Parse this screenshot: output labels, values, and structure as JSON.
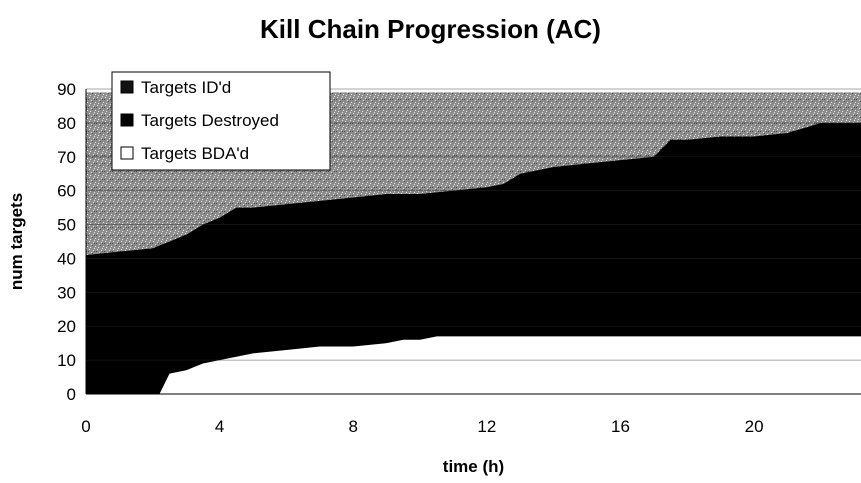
{
  "chart_data": {
    "type": "area",
    "title": "Kill Chain Progression (AC)",
    "xlabel": "time (h)",
    "ylabel": "num targets",
    "xlim": [
      0,
      23.2
    ],
    "ylim": [
      0,
      90
    ],
    "xticks": [
      0,
      4,
      8,
      12,
      16,
      20
    ],
    "yticks": [
      0,
      10,
      20,
      30,
      40,
      50,
      60,
      70,
      80,
      90
    ],
    "grid": true,
    "legend_position": "top-left",
    "series": [
      {
        "name": "Targets ID'd",
        "color": "#9a9a9a",
        "pattern": "speckled",
        "x": [
          0,
          1,
          2,
          2.5,
          3,
          3.5,
          4,
          4.5,
          5,
          6,
          7,
          8,
          9,
          10,
          11,
          12,
          12.5,
          13,
          14,
          15,
          16,
          17,
          17.5,
          18,
          19,
          20,
          21,
          22,
          23.2
        ],
        "values": [
          89,
          89,
          89,
          89,
          89,
          89,
          89,
          89,
          89,
          89,
          89,
          89,
          89,
          89,
          89,
          89,
          89,
          89,
          89,
          89,
          89,
          89,
          89,
          89,
          89,
          89,
          89,
          89,
          89
        ]
      },
      {
        "name": "Targets Destroyed",
        "color": "#000000",
        "x": [
          0,
          1,
          2,
          2.5,
          3,
          3.5,
          4,
          4.5,
          5,
          6,
          7,
          8,
          9,
          10,
          11,
          12,
          12.5,
          13,
          14,
          15,
          16,
          17,
          17.5,
          18,
          19,
          20,
          21,
          22,
          23.2
        ],
        "values": [
          41,
          42,
          43,
          45,
          47,
          50,
          52,
          55,
          55,
          56,
          57,
          58,
          59,
          59,
          60,
          61,
          62,
          65,
          67,
          68,
          69,
          70,
          75,
          75,
          76,
          76,
          77,
          80,
          80
        ]
      },
      {
        "name": "Targets BDA'd",
        "color": "#ffffff",
        "x": [
          0,
          2.2,
          2.5,
          3,
          3.5,
          4,
          4.5,
          5,
          6,
          7,
          8,
          9,
          9.5,
          10,
          10.5,
          11,
          12,
          14,
          16,
          18,
          20,
          22,
          23.2
        ],
        "values": [
          0,
          0,
          6,
          7,
          9,
          10,
          11,
          12,
          13,
          14,
          14,
          15,
          16,
          16,
          17,
          17,
          17,
          17,
          17,
          17,
          17,
          17,
          17
        ]
      }
    ]
  }
}
